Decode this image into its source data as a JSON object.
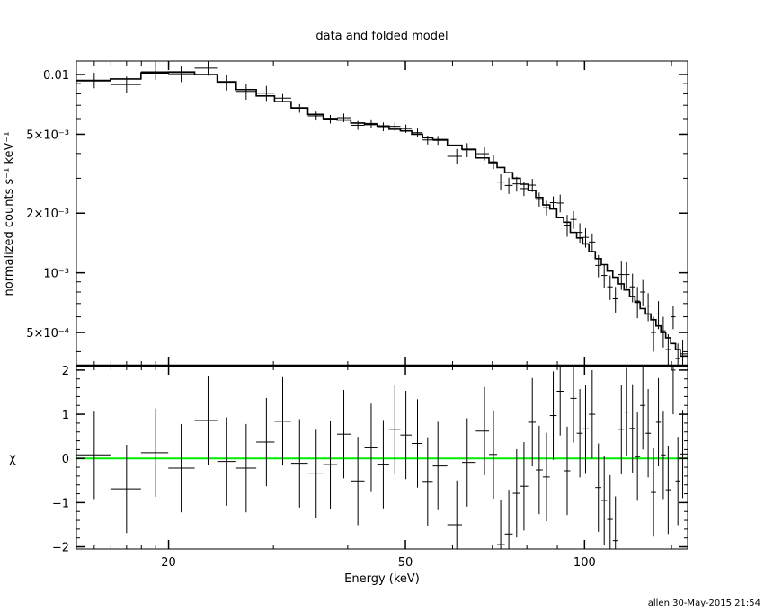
{
  "chart_data": {
    "type": "line",
    "title": "data and folded model",
    "xlabel": "Energy (keV)",
    "xscale": "log",
    "xlim": [
      14,
      149
    ],
    "x_ticks": [
      20,
      50,
      100
    ],
    "x_tick_labels": [
      "20",
      "50",
      "100"
    ],
    "panels": {
      "spectrum": {
        "ylabel": "normalized counts s⁻¹ keV⁻¹",
        "yscale": "log",
        "ylim": [
          0.00034,
          0.0117
        ],
        "y_ticks": [
          0.01,
          0.005,
          0.002,
          0.001,
          0.0005
        ],
        "y_tick_labels": [
          "0.01",
          "5×10⁻³",
          "2×10⁻³",
          "10⁻³",
          "5×10⁻⁴"
        ]
      },
      "residuals": {
        "ylabel": "χ",
        "ylim": [
          -2.05,
          2.1
        ],
        "y_ticks": [
          2,
          1,
          0,
          -1,
          -2
        ],
        "y_tick_labels": [
          "2",
          "1",
          "0",
          "−1",
          "−2"
        ],
        "zero_line_color": "#00ee00"
      }
    },
    "energy": [
      15.0,
      17.0,
      19.0,
      21.0,
      23.3,
      25.0,
      27.0,
      29.2,
      31.1,
      33.2,
      35.4,
      37.4,
      39.4,
      41.6,
      43.8,
      45.9,
      48.0,
      50.1,
      52.4,
      54.5,
      56.7,
      61.0,
      63.5,
      67.9,
      70.3,
      72.3,
      74.6,
      76.9,
      79.1,
      81.7,
      83.9,
      86.3,
      88.6,
      91.0,
      93.5,
      95.8,
      98.2,
      100.4,
      103.0,
      105.5,
      107.9,
      110.4,
      112.7,
      115.3,
      117.7,
      120.4,
      122.7,
      125.3,
      127.9,
      130.6,
      133.1,
      135.6,
      138.2,
      140.9,
      143.5,
      146.2
    ],
    "data": [
      0.00937,
      0.00891,
      0.01032,
      0.0101,
      0.01077,
      0.00914,
      0.00823,
      0.00806,
      0.00761,
      0.00676,
      0.00619,
      0.00596,
      0.00606,
      0.00555,
      0.00567,
      0.00546,
      0.00548,
      0.00534,
      0.00509,
      0.00468,
      0.00466,
      0.00387,
      0.00417,
      0.00399,
      0.00363,
      0.00287,
      0.00276,
      0.00281,
      0.00266,
      0.00277,
      0.00235,
      0.00213,
      0.00226,
      0.00225,
      0.00174,
      0.00186,
      0.0016,
      0.00151,
      0.00143,
      0.00109,
      0.00097,
      0.00085,
      0.00074,
      0.00098,
      0.00098,
      0.00085,
      0.00072,
      0.0008,
      0.00068,
      0.0005,
      0.00062,
      0.00051,
      0.00041,
      0.0006,
      0.00037,
      0.00039
    ],
    "data_err": [
      0.00084,
      0.00086,
      0.00092,
      0.00093,
      0.0009,
      0.00083,
      0.00076,
      0.0007,
      0.00037,
      0.00034,
      0.00032,
      0.0003,
      0.0003,
      0.00029,
      0.00028,
      0.00028,
      0.00027,
      0.00026,
      0.00025,
      0.00024,
      0.00024,
      0.00035,
      0.00034,
      0.0003,
      0.00029,
      0.00027,
      0.00026,
      0.00024,
      0.00022,
      0.00021,
      0.00019,
      0.00018,
      0.00017,
      0.00023,
      0.00022,
      0.00019,
      0.00018,
      0.00017,
      0.00015,
      0.00014,
      0.00013,
      0.00012,
      0.00011,
      0.00016,
      0.00015,
      0.00014,
      0.00013,
      0.00012,
      0.00011,
      0.0001,
      0.0001,
      9e-05,
      8e-05,
      8e-05,
      7e-05,
      7e-05
    ],
    "model": [
      0.0093,
      0.0095,
      0.0102,
      0.0103,
      0.01,
      0.0092,
      0.0084,
      0.0078,
      0.0073,
      0.0068,
      0.0063,
      0.006,
      0.0059,
      0.0057,
      0.0056,
      0.0055,
      0.0053,
      0.0052,
      0.005,
      0.0048,
      0.0047,
      0.0044,
      0.0042,
      0.0038,
      0.0036,
      0.0034,
      0.0032,
      0.003,
      0.0028,
      0.0026,
      0.0024,
      0.0022,
      0.0021,
      0.0019,
      0.0018,
      0.0016,
      0.0015,
      0.0014,
      0.00128,
      0.00118,
      0.0011,
      0.00102,
      0.00095,
      0.00088,
      0.00082,
      0.00076,
      0.00071,
      0.00066,
      0.00062,
      0.00058,
      0.00054,
      0.0005,
      0.00047,
      0.00044,
      0.00041,
      0.00038
    ],
    "chi": [
      0.08,
      -0.69,
      0.13,
      -0.22,
      0.86,
      -0.07,
      -0.22,
      0.37,
      0.84,
      -0.11,
      -0.35,
      -0.14,
      0.55,
      -0.51,
      0.24,
      -0.13,
      0.66,
      0.53,
      0.34,
      -0.52,
      -0.17,
      -1.5,
      -0.09,
      0.62,
      0.09,
      -1.95,
      -1.71,
      -0.79,
      -0.63,
      0.82,
      -0.26,
      -0.42,
      0.97,
      1.52,
      -0.28,
      1.36,
      0.57,
      0.67,
      1.0,
      -0.66,
      -0.95,
      -1.38,
      -1.86,
      0.66,
      1.05,
      0.68,
      0.04,
      1.2,
      0.57,
      -0.77,
      0.82,
      0.08,
      -0.71,
      2.0,
      -0.51,
      0.1
    ]
  },
  "footer": {
    "stamp": "allen 30-May-2015 21:54"
  }
}
